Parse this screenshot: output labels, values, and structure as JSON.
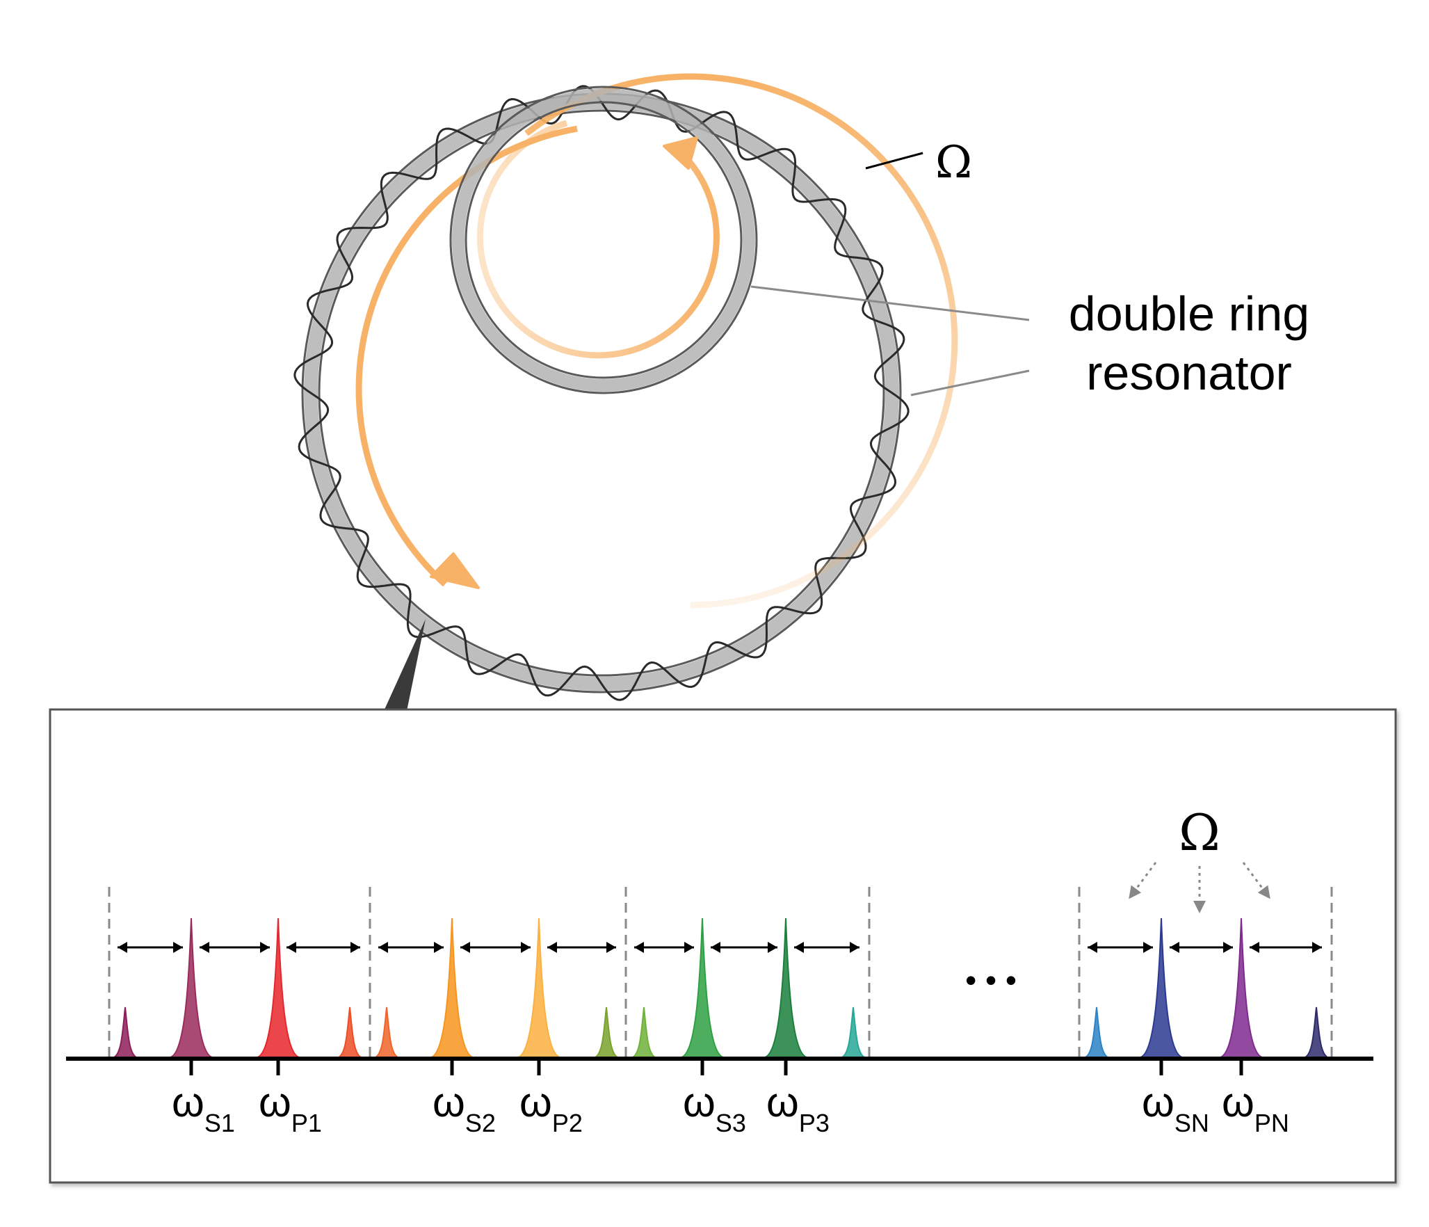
{
  "labels": {
    "omega_ring": "Ω",
    "omega_comb": "Ω",
    "callout_line1": "double ring",
    "callout_line2": "resonator",
    "ellipsis": "• • •"
  },
  "spectrum": {
    "axis_labels": [
      {
        "base": "ω",
        "sub": "S1"
      },
      {
        "base": "ω",
        "sub": "P1"
      },
      {
        "base": "ω",
        "sub": "S2"
      },
      {
        "base": "ω",
        "sub": "P2"
      },
      {
        "base": "ω",
        "sub": "S3"
      },
      {
        "base": "ω",
        "sub": "P3"
      },
      {
        "base": "ω",
        "sub": "SN"
      },
      {
        "base": "ω",
        "sub": "PN"
      }
    ],
    "groups": [
      {
        "name": "group-1",
        "colors": [
          "#8e1e5a",
          "#9a2a5c",
          "#e6262b",
          "#ee4e26"
        ]
      },
      {
        "name": "group-2",
        "colors": [
          "#f0642a",
          "#f7941d",
          "#fbb040",
          "#7aa22d"
        ]
      },
      {
        "name": "group-3",
        "colors": [
          "#6fb23a",
          "#2ea043",
          "#1b7f3c",
          "#27a795"
        ]
      },
      {
        "name": "group-N",
        "colors": [
          "#2b83c6",
          "#2b3990",
          "#7f2a8f",
          "#2e2b6b"
        ]
      }
    ]
  },
  "colors": {
    "arrow_orange": "#f7b267",
    "ring_gray": "#9a9a9a",
    "frame": "#555555"
  }
}
